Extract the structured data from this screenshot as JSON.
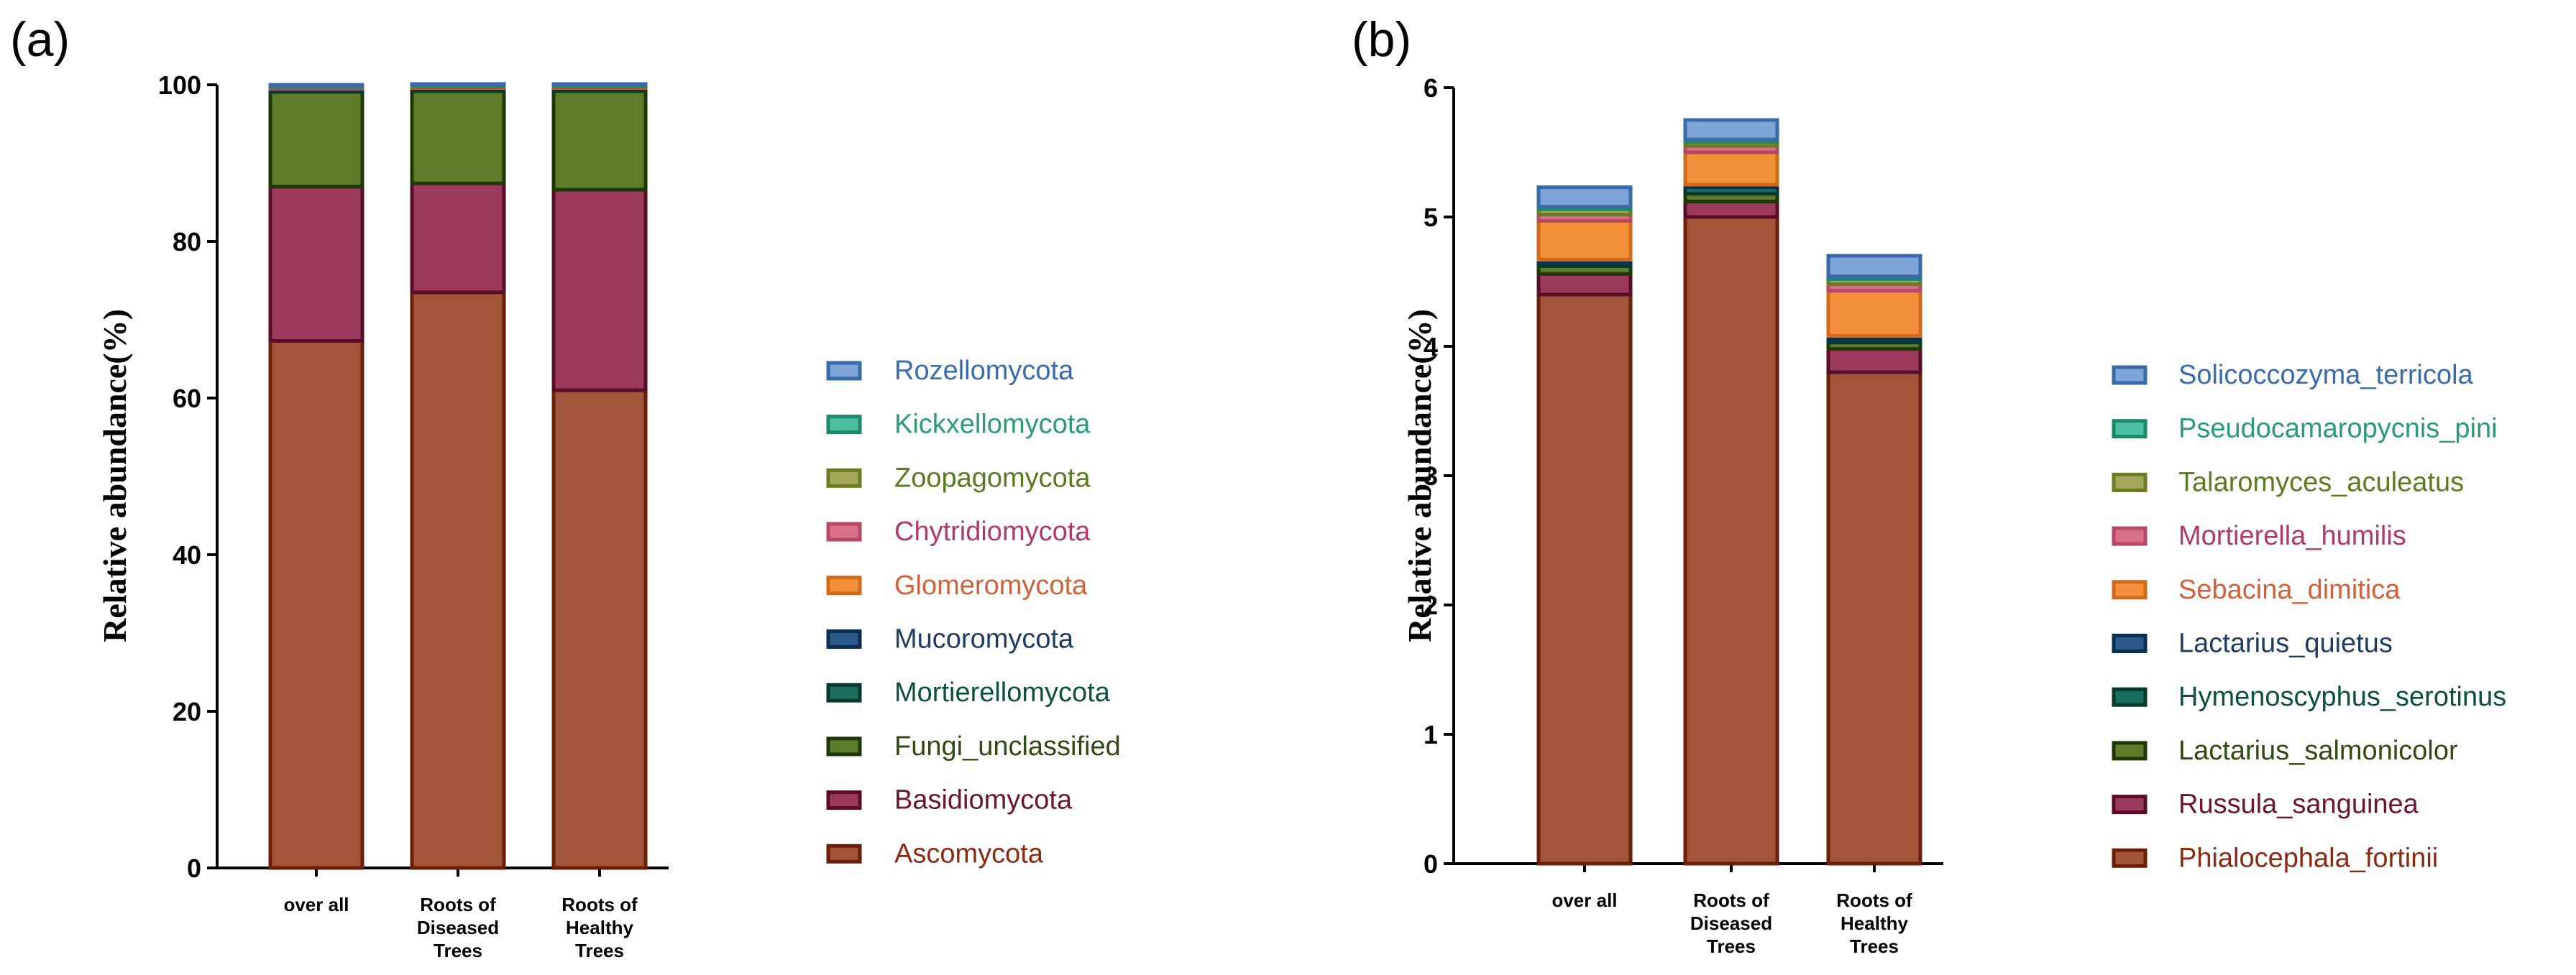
{
  "chart_data": [
    {
      "type": "bar",
      "stacked": true,
      "panel_label": "(a)",
      "ylabel": "Relative abundance(%)",
      "ylim": [
        0,
        100
      ],
      "yticks": [
        "0",
        "20",
        "40",
        "60",
        "80",
        "100"
      ],
      "categories": [
        [
          "over all"
        ],
        [
          "Roots of",
          "Diseased",
          "Trees"
        ],
        [
          "Roots of",
          "Healthy",
          "Trees"
        ]
      ],
      "series": [
        {
          "name": "Ascomycota",
          "color": "#a3553a",
          "edge": "#6b1e08",
          "text_color": "#8b2a12",
          "values": [
            67.3,
            73.5,
            61.0
          ]
        },
        {
          "name": "Basidiomycota",
          "color": "#9b3a5c",
          "edge": "#5a0d26",
          "text_color": "#6b1434",
          "values": [
            19.7,
            13.9,
            25.6
          ]
        },
        {
          "name": "Fungi_unclassified",
          "color": "#5e7d2a",
          "edge": "#1e3806",
          "text_color": "#2e4a10",
          "values": [
            12.1,
            11.8,
            12.6
          ]
        },
        {
          "name": "Mortierellomycota",
          "color": "#1a6e5a",
          "edge": "#063a2e",
          "text_color": "#0e5040",
          "values": [
            0.3,
            0.3,
            0.3
          ]
        },
        {
          "name": "Mucoromycota",
          "color": "#2a5a8a",
          "edge": "#0c2e52",
          "text_color": "#1e3c64",
          "values": [
            0.1,
            0.1,
            0.1
          ]
        },
        {
          "name": "Glomeromycota",
          "color": "#f2913a",
          "edge": "#d46a18",
          "text_color": "#d4603a",
          "values": [
            0.1,
            0.1,
            0.1
          ]
        },
        {
          "name": "Chytridiomycota",
          "color": "#d8708c",
          "edge": "#b84864",
          "text_color": "#b03a6a",
          "values": [
            0.1,
            0.1,
            0.1
          ]
        },
        {
          "name": "Zoopagomycota",
          "color": "#a4a85a",
          "edge": "#6e7a24",
          "text_color": "#5a7a20",
          "values": [
            0.1,
            0.1,
            0.1
          ]
        },
        {
          "name": "Kickxellomycota",
          "color": "#4cbfa0",
          "edge": "#1a8a6a",
          "text_color": "#2a9a7a",
          "values": [
            0.1,
            0.1,
            0.1
          ]
        },
        {
          "name": "Rozellomycota",
          "color": "#7ea4d8",
          "edge": "#3a6aa8",
          "text_color": "#3a6ab0",
          "values": [
            0.1,
            0.1,
            0.1
          ]
        }
      ]
    },
    {
      "type": "bar",
      "stacked": true,
      "panel_label": "(b)",
      "ylabel": "Relative abundance(%)",
      "ylim": [
        0,
        6
      ],
      "yticks": [
        "0",
        "1",
        "2",
        "3",
        "4",
        "5",
        "6"
      ],
      "categories": [
        [
          "over all"
        ],
        [
          "Roots of",
          "Diseased",
          "Trees"
        ],
        [
          "Roots of",
          "Healthy",
          "Trees"
        ]
      ],
      "series": [
        {
          "name": "Phialocephala_fortinii",
          "color": "#a3553a",
          "edge": "#6b1e08",
          "text_color": "#8b2a12",
          "values": [
            4.4,
            5.0,
            3.8
          ]
        },
        {
          "name": "Russula_sanguinea",
          "color": "#9b3a5c",
          "edge": "#5a0d26",
          "text_color": "#6b1434",
          "values": [
            0.16,
            0.12,
            0.18
          ]
        },
        {
          "name": "Lactarius_salmonicolor",
          "color": "#5e7d2a",
          "edge": "#1e3806",
          "text_color": "#2e4a10",
          "values": [
            0.06,
            0.06,
            0.05
          ]
        },
        {
          "name": "Hymenoscyphus_serotinus",
          "color": "#1a6e5a",
          "edge": "#063a2e",
          "text_color": "#0e5040",
          "values": [
            0.03,
            0.05,
            0.03
          ]
        },
        {
          "name": "Lactarius_quietus",
          "color": "#2a5a8a",
          "edge": "#0c2e52",
          "text_color": "#1e3c64",
          "values": [
            0.02,
            0.02,
            0.02
          ]
        },
        {
          "name": "Sebacina_dimitica",
          "color": "#f2913a",
          "edge": "#d46a18",
          "text_color": "#d4603a",
          "values": [
            0.3,
            0.25,
            0.35
          ]
        },
        {
          "name": "Mortierella_humilis",
          "color": "#d8708c",
          "edge": "#b84864",
          "text_color": "#b03a6a",
          "values": [
            0.05,
            0.05,
            0.05
          ]
        },
        {
          "name": "Talaromyces_aculeatus",
          "color": "#a4a85a",
          "edge": "#6e7a24",
          "text_color": "#5a7a20",
          "values": [
            0.04,
            0.03,
            0.04
          ]
        },
        {
          "name": "Pseudocamaropycnis_pini",
          "color": "#4cbfa0",
          "edge": "#1a8a6a",
          "text_color": "#2a9a7a",
          "values": [
            0.02,
            0.02,
            0.02
          ]
        },
        {
          "name": "Solicoccozyma_terricola",
          "color": "#7ea4d8",
          "edge": "#3a6aa8",
          "text_color": "#3a6ab0",
          "values": [
            0.15,
            0.15,
            0.16
          ]
        }
      ]
    }
  ]
}
